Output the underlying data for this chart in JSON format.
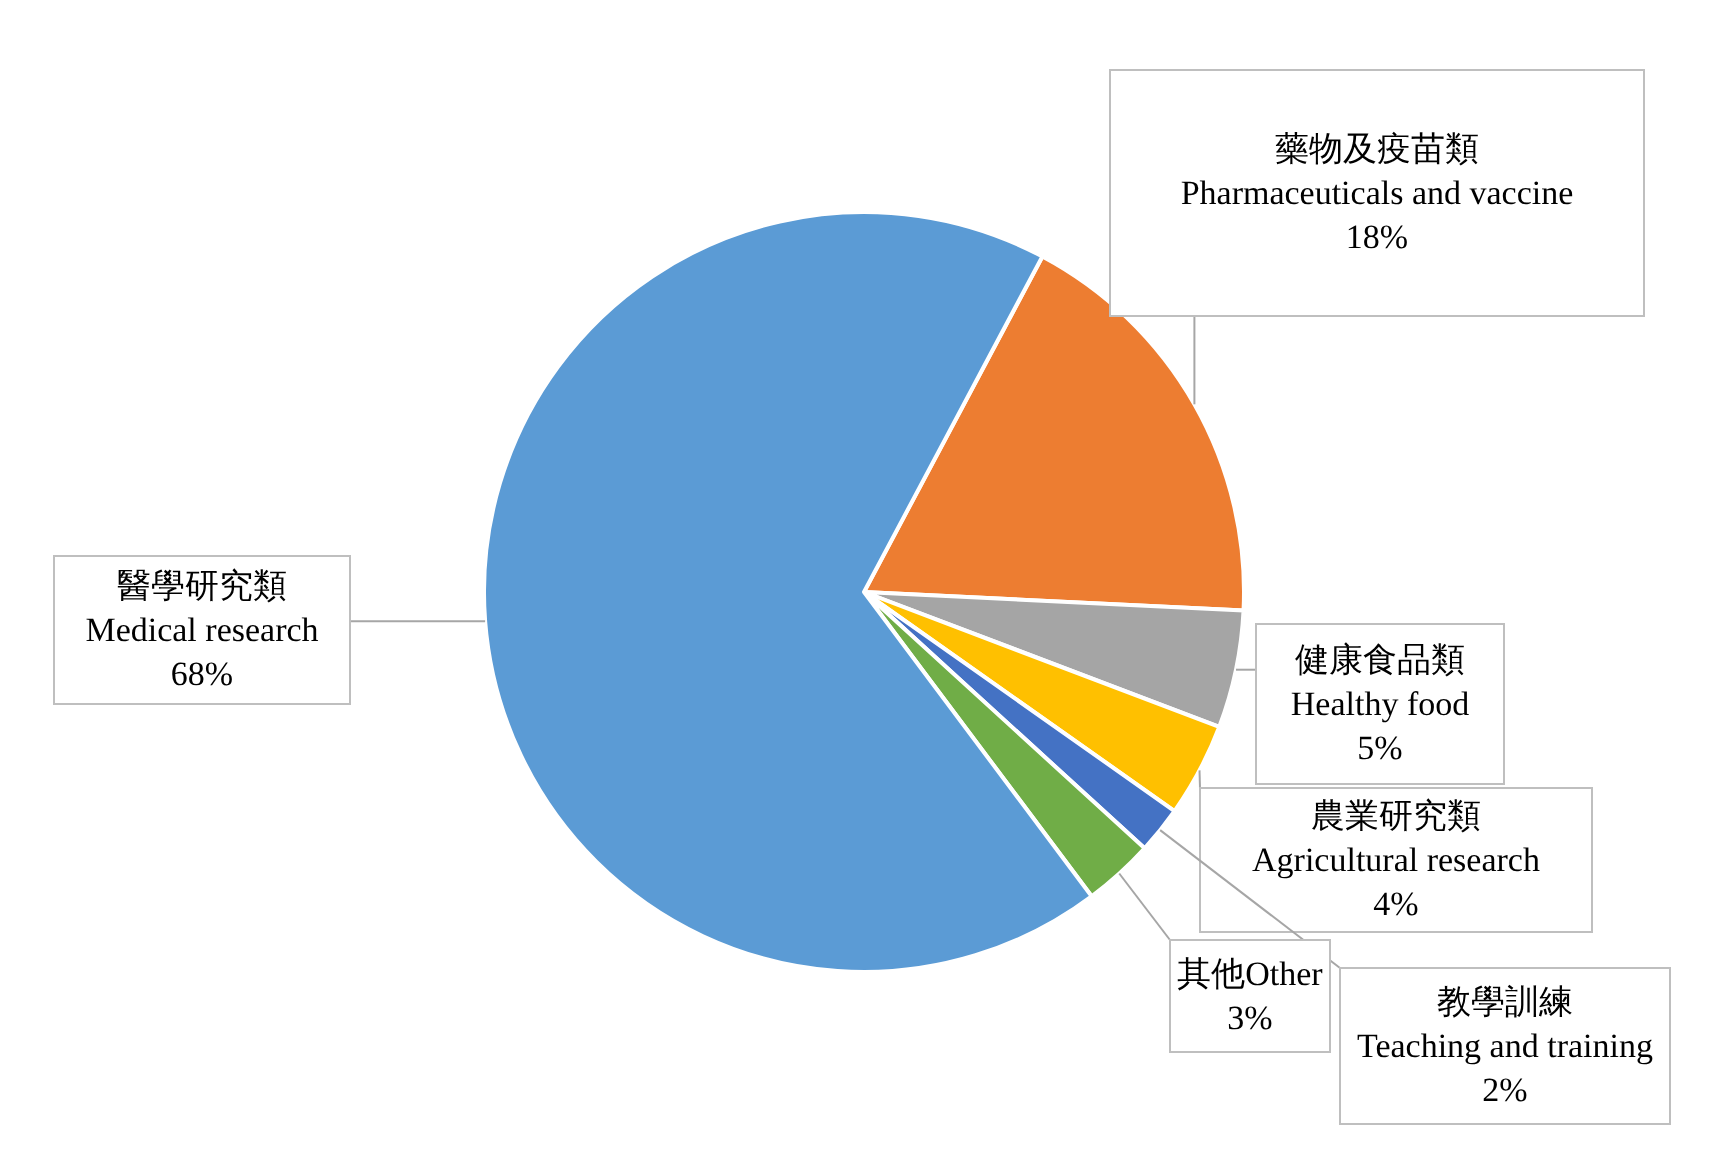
{
  "chart_data": {
    "type": "pie",
    "categories": [
      "藥物及疫苗類\nPharmaceuticals and vaccine",
      "健康食品類\nHealthy food",
      "農業研究類\nAgricultural research",
      "教學訓練\nTeaching and training",
      "其他Other",
      "醫學研究類\nMedical research"
    ],
    "values": [
      18,
      5,
      4,
      2,
      3,
      68
    ],
    "value_labels": [
      "18%",
      "5%",
      "4%",
      "2%",
      "3%",
      "68%"
    ],
    "colors": [
      "#ed7d31",
      "#a5a5a5",
      "#ffc000",
      "#4472c4",
      "#70ad47",
      "#5b9bd5"
    ]
  }
}
